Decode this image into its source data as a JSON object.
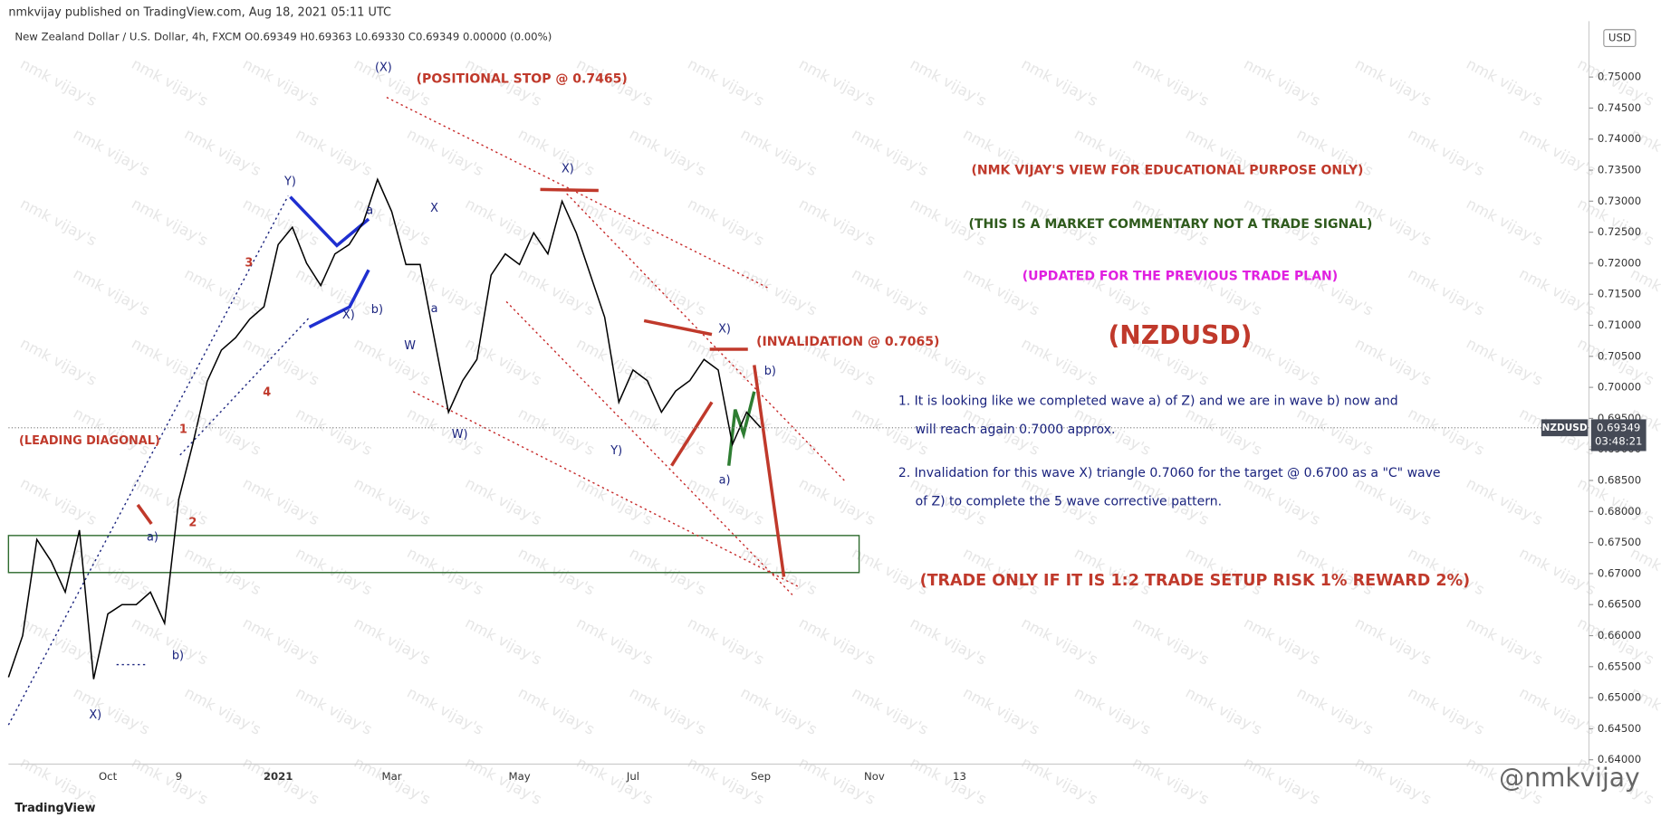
{
  "header": {
    "publisher": "nmkvijay published on TradingView.com, Aug 18, 2021 05:11 UTC",
    "symbol_line": "New Zealand Dollar / U.S. Dollar, 4h, FXCM  O0.69349  H0.69363  L0.69330  C0.69349  0.00000 (0.00%)"
  },
  "chart_data": {
    "type": "line",
    "color": "#000000",
    "categories": [
      null,
      null,
      null,
      null,
      null,
      null,
      null,
      "Oct",
      null,
      null,
      null,
      null,
      "9",
      null,
      null,
      null,
      null,
      null,
      null,
      "2021",
      null,
      null,
      null,
      null,
      null,
      null,
      null,
      "Mar",
      null,
      null,
      null,
      null,
      null,
      null,
      null,
      null,
      "May",
      null,
      null,
      null,
      null,
      null,
      null,
      null,
      "Jul",
      null,
      null,
      null,
      null,
      null,
      null,
      null,
      null,
      "Sep",
      null,
      null,
      null,
      null,
      null,
      null,
      null,
      "Nov",
      null,
      null,
      null,
      null,
      null,
      "13"
    ],
    "values": [
      0.6533,
      0.66,
      0.6755,
      0.672,
      0.667,
      0.677,
      0.653,
      0.6635,
      0.665,
      0.665,
      0.667,
      0.662,
      0.682,
      0.691,
      0.701,
      0.706,
      0.708,
      0.711,
      0.713,
      0.723,
      0.7258,
      0.72,
      0.7164,
      0.7215,
      0.723,
      0.7266,
      0.7335,
      0.7283,
      0.7198,
      0.7198,
      0.7079,
      0.696,
      0.7011,
      0.7045,
      0.7181,
      0.7215,
      0.7198,
      0.7249,
      0.7215,
      0.73,
      0.7249,
      0.7181,
      0.7113,
      0.6976,
      0.7028,
      0.7011,
      0.696,
      0.6994,
      0.7011,
      0.7045,
      0.7028,
      0.6908,
      0.696,
      0.69349,
      null,
      null,
      null,
      null,
      null,
      null,
      null,
      null,
      null,
      null,
      null,
      null,
      null,
      null
    ],
    "ylim": [
      0.6393,
      0.759
    ],
    "yticks": [
      {
        "value": 0.64,
        "label": "0.64000"
      },
      {
        "value": 0.645,
        "label": "0.64500"
      },
      {
        "value": 0.65,
        "label": "0.65000"
      },
      {
        "value": 0.655,
        "label": "0.65500"
      },
      {
        "value": 0.66,
        "label": "0.66000"
      },
      {
        "value": 0.665,
        "label": "0.66500"
      },
      {
        "value": 0.67,
        "label": "0.67000"
      },
      {
        "value": 0.675,
        "label": "0.67500"
      },
      {
        "value": 0.68,
        "label": "0.68000"
      },
      {
        "value": 0.685,
        "label": "0.68500"
      },
      {
        "value": 0.69,
        "label": "0.69000"
      },
      {
        "value": 0.695,
        "label": "0.69500"
      },
      {
        "value": 0.7,
        "label": "0.70000"
      },
      {
        "value": 0.705,
        "label": "0.70500"
      },
      {
        "value": 0.71,
        "label": "0.71000"
      },
      {
        "value": 0.715,
        "label": "0.71500"
      },
      {
        "value": 0.72,
        "label": "0.72000"
      },
      {
        "value": 0.725,
        "label": "0.72500"
      },
      {
        "value": 0.73,
        "label": "0.73000"
      },
      {
        "value": 0.735,
        "label": "0.73500"
      },
      {
        "value": 0.74,
        "label": "0.74000"
      },
      {
        "value": 0.745,
        "label": "0.74500"
      },
      {
        "value": 0.75,
        "label": "0.75000"
      }
    ],
    "currency": "USD",
    "price_label": {
      "symbol": "NZDUSD",
      "value": 0.69349,
      "countdown": "03:48:21"
    },
    "annotations": [
      "(POSITIONAL STOP @ 0.7465)",
      "(INVALIDATION @ 0.7065)",
      "(LEADING DIAGONAL)",
      "(NMK VIJAY'S VIEW FOR EDUCATIONAL PURPOSE ONLY)",
      "(THIS IS A MARKET COMMENTARY NOT A TRADE SIGNAL)",
      "(UPDATED FOR THE PREVIOUS TRADE PLAN)",
      "(NZDUSD)",
      "1. It is looking like we completed wave a) of Z) and we are in wave b) now and",
      "will reach  again 0.7000 approx.",
      "2. Invalidation for this wave X) triangle 0.7060 for the target @ 0.6700 as a \"C\" wave",
      "of Z) to complete the 5 wave corrective pattern.",
      "(TRADE ONLY IF IT IS 1:2 TRADE SETUP RISK 1% REWARD 2%)"
    ],
    "wave_labels": [
      "(X)",
      "Y)",
      "X",
      "a",
      "b)",
      "X)",
      "W",
      "a",
      "W)",
      "X)",
      "Y)",
      "X)",
      "b)",
      "a)",
      "b)",
      "X)",
      "a)",
      "3",
      "4",
      "1",
      "2"
    ]
  },
  "watermark": "nmk vijay's",
  "footer": {
    "logo": "TradingView",
    "handle": "@nmkvijay"
  }
}
